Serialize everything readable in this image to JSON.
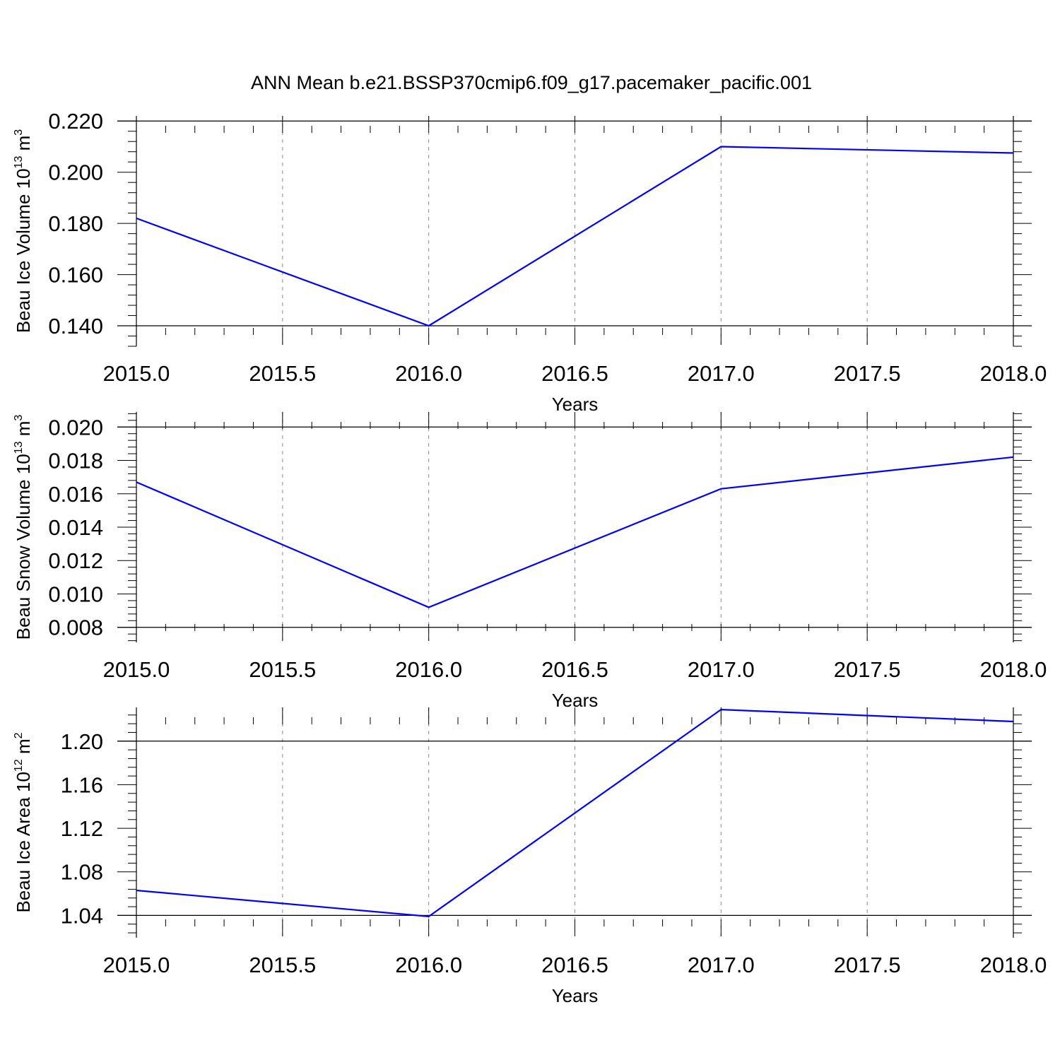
{
  "title": "ANN Mean b.e21.BSSP370cmip6.f09_g17.pacemaker_pacific.001",
  "colors": {
    "series": "#0000ff",
    "grid": "#888888",
    "axis": "#000000"
  },
  "chart_data": [
    {
      "type": "line",
      "xlabel": "Years",
      "ylabel": {
        "text": "Beau Ice Volume 10",
        "exp1": "13",
        "mid": " m",
        "exp2": "3"
      },
      "xlim": [
        2015.0,
        2018.0
      ],
      "ylim": [
        0.132,
        0.222
      ],
      "xticks": [
        2015.0,
        2015.5,
        2016.0,
        2016.5,
        2017.0,
        2017.5,
        2018.0
      ],
      "xtick_labels": [
        "2015.0",
        "2015.5",
        "2016.0",
        "2016.5",
        "2017.0",
        "2017.5",
        "2018.0"
      ],
      "x_minor_step": 0.1,
      "yticks": [
        0.14,
        0.16,
        0.18,
        0.2,
        0.22
      ],
      "ytick_labels": [
        "0.140",
        "0.160",
        "0.180",
        "0.200",
        "0.220"
      ],
      "y_minor_step": 0.004,
      "grid": "vertical dashed at major x ticks",
      "series": [
        {
          "x": [
            2015,
            2016,
            2017,
            2018
          ],
          "values": [
            0.182,
            0.14,
            0.21,
            0.2075
          ]
        }
      ]
    },
    {
      "type": "line",
      "xlabel": "Years",
      "ylabel": {
        "text": "Beau Snow Volume 10",
        "exp1": "13",
        "mid": " m",
        "exp2": "3"
      },
      "xlim": [
        2015.0,
        2018.0
      ],
      "ylim": [
        0.0071,
        0.0209
      ],
      "xticks": [
        2015.0,
        2015.5,
        2016.0,
        2016.5,
        2017.0,
        2017.5,
        2018.0
      ],
      "xtick_labels": [
        "2015.0",
        "2015.5",
        "2016.0",
        "2016.5",
        "2017.0",
        "2017.5",
        "2018.0"
      ],
      "x_minor_step": 0.1,
      "yticks": [
        0.008,
        0.01,
        0.012,
        0.014,
        0.016,
        0.018,
        0.02
      ],
      "ytick_labels": [
        "0.008",
        "0.010",
        "0.012",
        "0.014",
        "0.016",
        "0.018",
        "0.020"
      ],
      "y_minor_step": 0.0004,
      "grid": "vertical dashed at major x ticks",
      "series": [
        {
          "x": [
            2015,
            2016,
            2017,
            2018
          ],
          "values": [
            0.0167,
            0.0092,
            0.0163,
            0.0182
          ]
        }
      ]
    },
    {
      "type": "line",
      "xlabel": "Years",
      "ylabel": {
        "text": "Beau Ice Area 10",
        "exp1": "12",
        "mid": " m",
        "exp2": "2"
      },
      "xlim": [
        2015.0,
        2018.0
      ],
      "ylim": [
        1.0195,
        1.231
      ],
      "xticks": [
        2015.0,
        2015.5,
        2016.0,
        2016.5,
        2017.0,
        2017.5,
        2018.0
      ],
      "xtick_labels": [
        "2015.0",
        "2015.5",
        "2016.0",
        "2016.5",
        "2017.0",
        "2017.5",
        "2018.0"
      ],
      "x_minor_step": 0.1,
      "yticks": [
        1.04,
        1.08,
        1.12,
        1.16,
        1.2
      ],
      "ytick_labels": [
        "1.04",
        "1.08",
        "1.12",
        "1.16",
        "1.20"
      ],
      "y_minor_step": 0.008,
      "grid": "vertical dashed at major x ticks",
      "series": [
        {
          "x": [
            2015,
            2016,
            2017,
            2018
          ],
          "values": [
            1.063,
            1.039,
            1.229,
            1.218
          ]
        }
      ]
    }
  ]
}
